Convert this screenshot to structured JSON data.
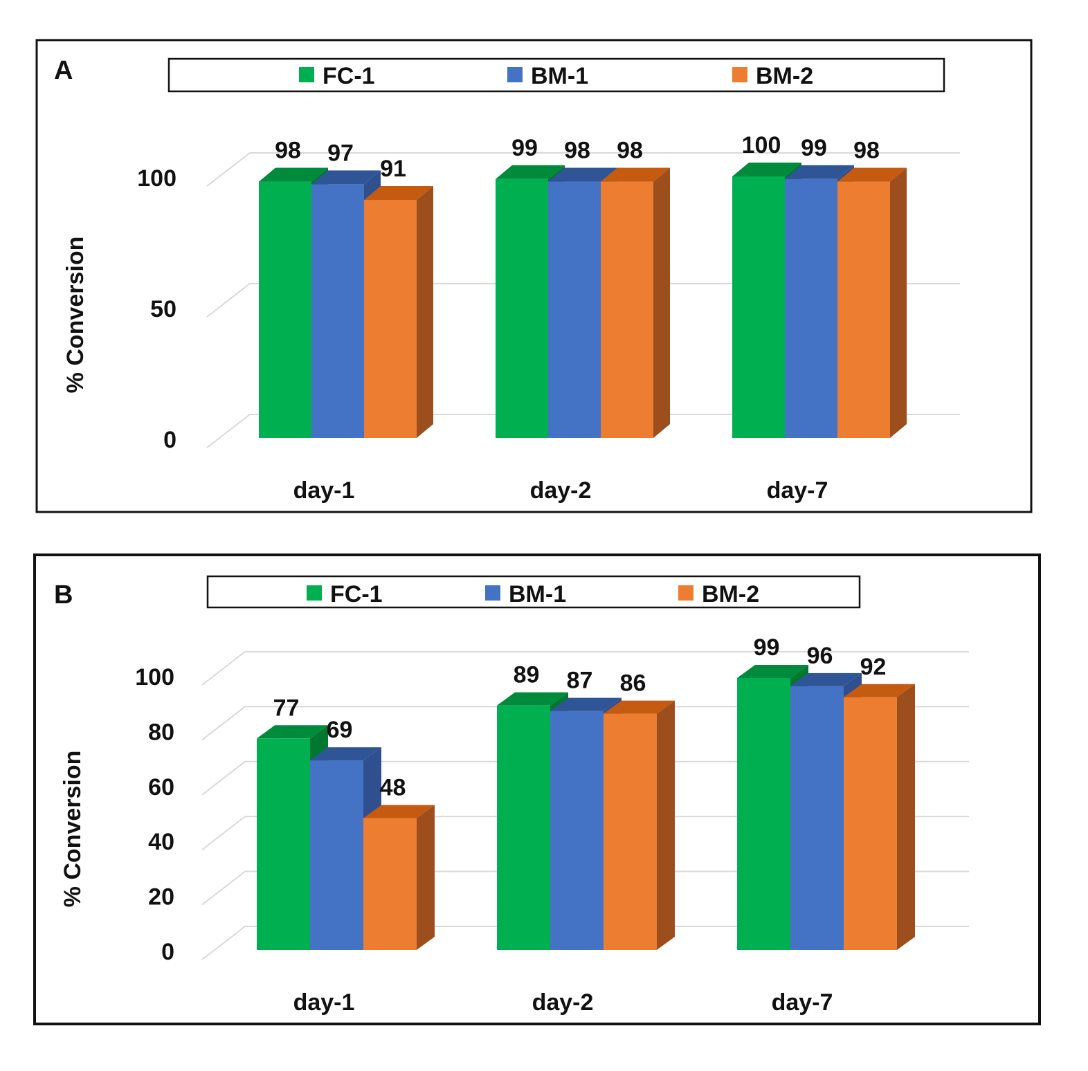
{
  "colors": {
    "FC-1": {
      "front": "#00b050",
      "top": "#008a3c",
      "side": "#00782f"
    },
    "BM-1": {
      "front": "#4472c4",
      "top": "#2f5597",
      "side": "#2f4f8f"
    },
    "BM-2": {
      "front": "#ed7d31",
      "top": "#c55a11",
      "side": "#9c4e1d"
    },
    "grid": "#d9d9d9",
    "frame": "#111111"
  },
  "chart_data": [
    {
      "type": "bar",
      "panel_label": "A",
      "categories": [
        "day-1",
        "day-2",
        "day-7"
      ],
      "series": [
        {
          "name": "FC-1",
          "values": [
            98,
            99,
            100
          ]
        },
        {
          "name": "BM-1",
          "values": [
            97,
            98,
            99
          ]
        },
        {
          "name": "BM-2",
          "values": [
            91,
            98,
            98
          ]
        }
      ],
      "data_labels": [
        [
          "98",
          "99",
          "100"
        ],
        [
          "97",
          "98",
          "99"
        ],
        [
          "91",
          "98",
          "98"
        ]
      ],
      "ylabel": "% Conversion",
      "ylim": [
        0,
        100
      ],
      "yticks": [
        0,
        50,
        100
      ],
      "ytick_labels": [
        "0",
        "50",
        "100"
      ],
      "legend": "top"
    },
    {
      "type": "bar",
      "panel_label": "B",
      "categories": [
        "day-1",
        "day-2",
        "day-7"
      ],
      "series": [
        {
          "name": "FC-1",
          "values": [
            77,
            89,
            99
          ]
        },
        {
          "name": "BM-1",
          "values": [
            69,
            87,
            96
          ]
        },
        {
          "name": "BM-2",
          "values": [
            48,
            86,
            92
          ]
        }
      ],
      "data_labels": [
        [
          "77",
          "89",
          "99"
        ],
        [
          "69",
          "87",
          "96"
        ],
        [
          "48",
          "86",
          "92"
        ]
      ],
      "ylabel": "% Conversion",
      "ylim": [
        0,
        100
      ],
      "yticks": [
        0,
        20,
        40,
        60,
        80,
        100
      ],
      "ytick_labels": [
        "0",
        "20",
        "40",
        "60",
        "80",
        "100"
      ],
      "legend": "top"
    }
  ]
}
